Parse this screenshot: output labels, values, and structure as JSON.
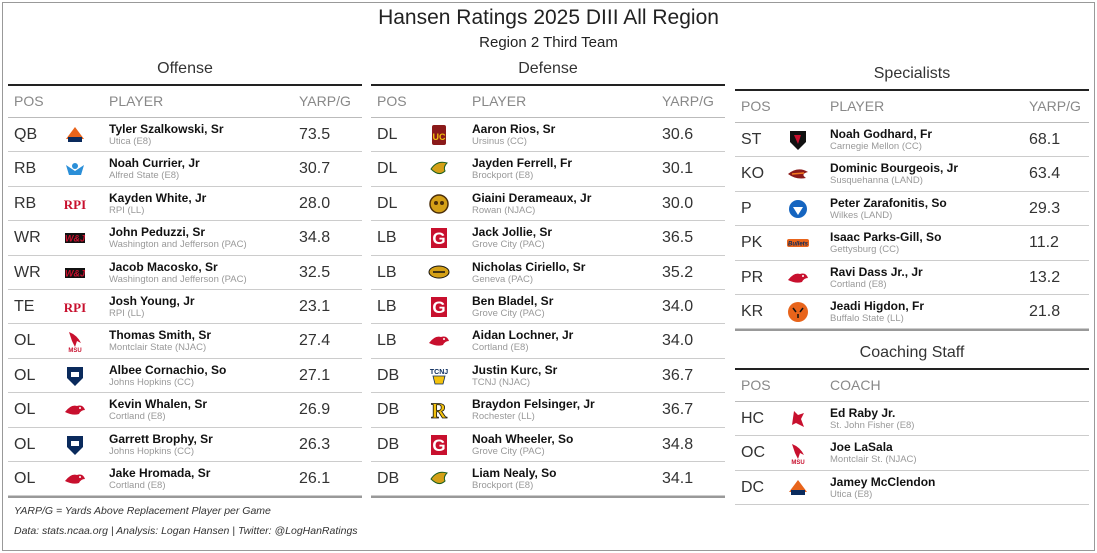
{
  "title": "Hansen Ratings 2025 DIII All Region",
  "subtitle": "Region 2 Third Team",
  "offense": {
    "title": "Offense",
    "headers": {
      "pos": "POS",
      "player": "PLAYER",
      "val": "YARP/G"
    },
    "rows": [
      {
        "pos": "QB",
        "name": "Tyler Szalkowski, Sr",
        "school": "Utica (E8)",
        "val": "73.5",
        "logo": "utica-pioneers-logo"
      },
      {
        "pos": "RB",
        "name": "Noah Currier, Jr",
        "school": "Alfred State (E8)",
        "val": "30.7",
        "logo": "alfred-state-logo"
      },
      {
        "pos": "RB",
        "name": "Kayden White, Jr",
        "school": "RPI (LL)",
        "val": "28.0",
        "logo": "rpi-logo"
      },
      {
        "pos": "WR",
        "name": "John Peduzzi, Sr",
        "school": "Washington and Jefferson (PAC)",
        "val": "34.8",
        "logo": "wj-logo"
      },
      {
        "pos": "WR",
        "name": "Jacob Macosko, Sr",
        "school": "Washington and Jefferson (PAC)",
        "val": "32.5",
        "logo": "wj-logo"
      },
      {
        "pos": "TE",
        "name": "Josh Young, Jr",
        "school": "RPI (LL)",
        "val": "23.1",
        "logo": "rpi-logo"
      },
      {
        "pos": "OL",
        "name": "Thomas Smith, Sr",
        "school": "Montclair State (NJAC)",
        "val": "27.4",
        "logo": "montclair-red-hawk-logo"
      },
      {
        "pos": "OL",
        "name": "Albee Cornachio, So",
        "school": "Johns Hopkins (CC)",
        "val": "27.1",
        "logo": "johns-hopkins-logo"
      },
      {
        "pos": "OL",
        "name": "Kevin Whalen, Sr",
        "school": "Cortland (E8)",
        "val": "26.9",
        "logo": "cortland-red-dragon-logo"
      },
      {
        "pos": "OL",
        "name": "Garrett Brophy, Sr",
        "school": "Johns Hopkins (CC)",
        "val": "26.3",
        "logo": "johns-hopkins-logo"
      },
      {
        "pos": "OL",
        "name": "Jake Hromada, Sr",
        "school": "Cortland (E8)",
        "val": "26.1",
        "logo": "cortland-red-dragon-logo"
      }
    ]
  },
  "defense": {
    "title": "Defense",
    "headers": {
      "pos": "POS",
      "player": "PLAYER",
      "val": "YARP/G"
    },
    "rows": [
      {
        "pos": "DL",
        "name": "Aaron Rios, Sr",
        "school": "Ursinus (CC)",
        "val": "30.6",
        "logo": "ursinus-logo"
      },
      {
        "pos": "DL",
        "name": "Jayden Ferrell, Fr",
        "school": "Brockport (E8)",
        "val": "30.1",
        "logo": "brockport-golden-eagle-logo"
      },
      {
        "pos": "DL",
        "name": "Giaini Derameaux, Jr",
        "school": "Rowan (NJAC)",
        "val": "30.0",
        "logo": "rowan-prof-logo"
      },
      {
        "pos": "LB",
        "name": "Jack Jollie, Sr",
        "school": "Grove City (PAC)",
        "val": "36.5",
        "logo": "grove-city-g-logo"
      },
      {
        "pos": "LB",
        "name": "Nicholas Ciriello, Sr",
        "school": "Geneva (PAC)",
        "val": "35.2",
        "logo": "geneva-golden-tornadoes-logo"
      },
      {
        "pos": "LB",
        "name": "Ben Bladel, Sr",
        "school": "Grove City (PAC)",
        "val": "34.0",
        "logo": "grove-city-g-logo"
      },
      {
        "pos": "LB",
        "name": "Aidan Lochner, Jr",
        "school": "Cortland (E8)",
        "val": "34.0",
        "logo": "cortland-red-dragon-logo"
      },
      {
        "pos": "DB",
        "name": "Justin Kurc, Sr",
        "school": "TCNJ (NJAC)",
        "val": "36.7",
        "logo": "tcnj-logo"
      },
      {
        "pos": "DB",
        "name": "Braydon Felsinger, Jr",
        "school": "Rochester (LL)",
        "val": "36.7",
        "logo": "rochester-r-logo"
      },
      {
        "pos": "DB",
        "name": "Noah Wheeler, So",
        "school": "Grove City (PAC)",
        "val": "34.8",
        "logo": "grove-city-g-logo"
      },
      {
        "pos": "DB",
        "name": "Liam Nealy, So",
        "school": "Brockport (E8)",
        "val": "34.1",
        "logo": "brockport-golden-eagle-logo"
      }
    ]
  },
  "specialists": {
    "title": "Specialists",
    "headers": {
      "pos": "POS",
      "player": "PLAYER",
      "val": "YARP/G"
    },
    "rows": [
      {
        "pos": "ST",
        "name": "Noah Godhard, Fr",
        "school": "Carnegie Mellon (CC)",
        "val": "68.1",
        "logo": "carnegie-mellon-logo"
      },
      {
        "pos": "KO",
        "name": "Dominic Bourgeois, Jr",
        "school": "Susquehanna (LAND)",
        "val": "63.4",
        "logo": "susquehanna-logo"
      },
      {
        "pos": "P",
        "name": "Peter Zarafonitis, So",
        "school": "Wilkes (LAND)",
        "val": "29.3",
        "logo": "wilkes-colonel-logo"
      },
      {
        "pos": "PK",
        "name": "Isaac Parks-Gill, So",
        "school": "Gettysburg (CC)",
        "val": "11.2",
        "logo": "gettysburg-bullets-logo"
      },
      {
        "pos": "PR",
        "name": "Ravi Dass Jr., Jr",
        "school": "Cortland (E8)",
        "val": "13.2",
        "logo": "cortland-red-dragon-logo"
      },
      {
        "pos": "KR",
        "name": "Jeadi Higdon, Fr",
        "school": "Buffalo State (LL)",
        "val": "21.8",
        "logo": "buffalo-state-bengal-logo"
      }
    ]
  },
  "coaching": {
    "title": "Coaching Staff",
    "headers": {
      "pos": "POS",
      "coach": "COACH"
    },
    "rows": [
      {
        "pos": "HC",
        "name": "Ed Raby Jr.",
        "school": "St. John Fisher (E8)",
        "logo": "st-john-fisher-cardinal-logo"
      },
      {
        "pos": "OC",
        "name": "Joe LaSala",
        "school": "Montclair St. (NJAC)",
        "logo": "montclair-red-hawk-logo"
      },
      {
        "pos": "DC",
        "name": "Jamey McClendon",
        "school": "Utica (E8)",
        "logo": "utica-pioneers-logo"
      }
    ]
  },
  "footnote_definition": "YARP/G = Yards Above Replacement Player per Game",
  "footnote_credits": "Data: stats.ncaa.org | Analysis: Logan Hansen | Twitter: @LogHanRatings",
  "colors": {
    "accent_red": "#c8102e",
    "rule": "#222222",
    "muted": "#999999"
  }
}
